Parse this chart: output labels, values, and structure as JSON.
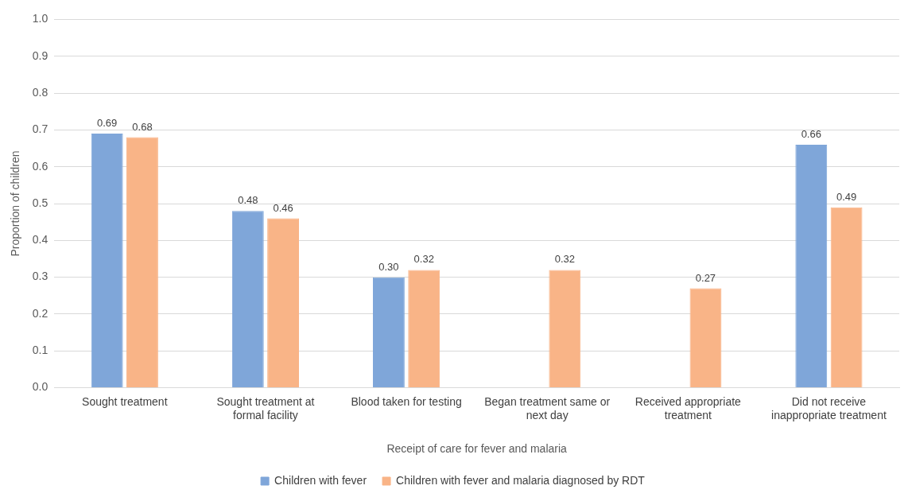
{
  "chart_data": {
    "type": "bar",
    "xlabel": "Receipt of care for fever and malaria",
    "ylabel": "Proportion of children",
    "categories": [
      "Sought treatment",
      "Sought treatment at formal facility",
      "Blood taken for testing",
      "Began treatment same or next day",
      "Received appropriate treatment",
      "Did not receive inappropriate treatment"
    ],
    "series": [
      {
        "name": "Children with fever",
        "color": "#7fa6d9",
        "values": [
          0.69,
          0.48,
          0.3,
          null,
          null,
          0.66
        ],
        "value_labels": [
          "0.69",
          "0.48",
          "0.30",
          null,
          null,
          "0.66"
        ]
      },
      {
        "name": "Children with fever and malaria diagnosed by RDT",
        "color": "#f9b487",
        "values": [
          0.68,
          0.46,
          0.32,
          0.32,
          0.27,
          0.49
        ],
        "value_labels": [
          "0.68",
          "0.46",
          "0.32",
          "0.32",
          "0.27",
          "0.49"
        ]
      }
    ],
    "ylim": [
      0,
      1
    ],
    "yticks": [
      {
        "value": 0,
        "label": "0.0"
      },
      {
        "value": 0.1,
        "label": "0.1"
      },
      {
        "value": 0.2,
        "label": "0.2"
      },
      {
        "value": 0.3,
        "label": "0.3"
      },
      {
        "value": 0.4,
        "label": "0.4"
      },
      {
        "value": 0.5,
        "label": "0.5"
      },
      {
        "value": 0.6,
        "label": "0.6"
      },
      {
        "value": 0.7,
        "label": "0.7"
      },
      {
        "value": 0.8,
        "label": "0.8"
      },
      {
        "value": 0.9,
        "label": "0.9"
      },
      {
        "value": 1,
        "label": "1.0"
      }
    ],
    "grid": "y",
    "legend": "bottom"
  }
}
